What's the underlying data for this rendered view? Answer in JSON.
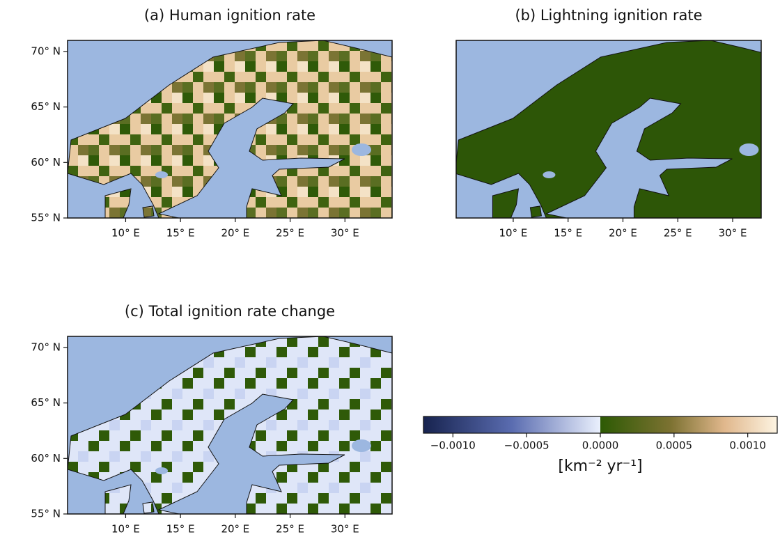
{
  "panels": [
    {
      "title": "(a) Human ignition rate",
      "xlim": [
        4.7,
        34.3
      ],
      "ylim": [
        55,
        71
      ],
      "xticks": [
        {
          "value": 10,
          "label": "10° E"
        },
        {
          "value": 15,
          "label": "15° E"
        },
        {
          "value": 20,
          "label": "20° E"
        },
        {
          "value": 25,
          "label": "25° E"
        },
        {
          "value": 30,
          "label": "30° E"
        }
      ],
      "yticks": [
        {
          "value": 55,
          "label": "55° N"
        },
        {
          "value": 60,
          "label": "60° N"
        },
        {
          "value": 65,
          "label": "65° N"
        },
        {
          "value": 70,
          "label": "70° N"
        }
      ]
    },
    {
      "title": "(b) Lightning ignition rate",
      "xlim": [
        4.8,
        32.6
      ],
      "ylim": [
        55,
        71
      ],
      "xticks": [
        {
          "value": 10,
          "label": "10° E"
        },
        {
          "value": 15,
          "label": "15° E"
        },
        {
          "value": 20,
          "label": "20° E"
        },
        {
          "value": 25,
          "label": "25° E"
        },
        {
          "value": 30,
          "label": "30° E"
        }
      ],
      "yticks": []
    },
    {
      "title": "(c) Total ignition rate change",
      "xlim": [
        4.7,
        34.3
      ],
      "ylim": [
        55,
        71
      ],
      "xticks": [
        {
          "value": 10,
          "label": "10° E"
        },
        {
          "value": 15,
          "label": "15° E"
        },
        {
          "value": 20,
          "label": "20° E"
        },
        {
          "value": 25,
          "label": "25° E"
        },
        {
          "value": 30,
          "label": "30° E"
        }
      ],
      "yticks": [
        {
          "value": 55,
          "label": "55° N"
        },
        {
          "value": 60,
          "label": "60° N"
        },
        {
          "value": 65,
          "label": "65° N"
        },
        {
          "value": 70,
          "label": "70° N"
        }
      ]
    }
  ],
  "colorbar": {
    "lim": [
      -0.0012,
      0.0012
    ],
    "ticks": [
      {
        "value": -0.001,
        "label": "−0.0010"
      },
      {
        "value": -0.0005,
        "label": "−0.0005"
      },
      {
        "value": 0,
        "label": "0.0000"
      },
      {
        "value": 0.0005,
        "label": "0.0005"
      },
      {
        "value": 0.001,
        "label": "0.0010"
      }
    ],
    "label": "[km⁻² yr⁻¹]"
  }
}
